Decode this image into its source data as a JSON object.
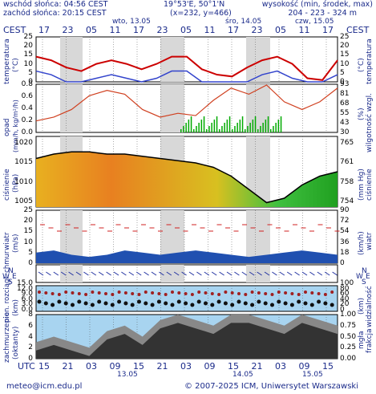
{
  "header": {
    "sunrise": "wschód słońca: 04:56 CEST",
    "sunset": "zachód słońca: 20:15 CEST",
    "coords": "19°53'E, 50°1'N",
    "grid": "(x=232, y=466)",
    "elev_label": "wysokość (min, środek, max)",
    "elev_value": "204 - 223 - 324 m"
  },
  "top_axis": {
    "tz_left": "CEST",
    "tz_right": "CEST",
    "hours": [
      "17",
      "23",
      "05",
      "11",
      "17",
      "23",
      "05",
      "11",
      "17",
      "23",
      "05",
      "11",
      "17"
    ],
    "days": [
      "wto, 13.05",
      "śro, 14.05",
      "czw, 15.05"
    ]
  },
  "bottom_axis": {
    "tz": "UTC",
    "hours": [
      "15",
      "21",
      "03",
      "09",
      "15",
      "21",
      "03",
      "09",
      "15",
      "21",
      "03",
      "09",
      "15"
    ],
    "dates": [
      "13.05",
      "14.05",
      "15.05"
    ]
  },
  "footer": {
    "left": "meteo@icm.edu.pl",
    "right": "© 2007-2025 ICM, Uniwersytet Warszawski"
  },
  "panels": {
    "temp": {
      "label_left": "temperatura",
      "unit_left": "(°C)",
      "label_right": "temperatura",
      "unit_right": "(°C)",
      "ticks": [
        "25",
        "20",
        "15",
        "10",
        "5",
        "0"
      ]
    },
    "precip": {
      "label_left": "opad",
      "unit_left": "(mm/h, kg/m²/h)",
      "label_right": "wilgotność wzgl.",
      "unit_right": "(%)",
      "ticks_left": [
        "0.8",
        "0.6",
        "0.4",
        "0.2",
        "0.0"
      ],
      "ticks_right": [
        "93",
        "81",
        "68",
        "55",
        "43",
        "30"
      ]
    },
    "pressure": {
      "label_left": "ciśnienie",
      "unit_left": "(hPa)",
      "label_right": "ciśnienie",
      "unit_right": "(mm Hg)",
      "ticks_left": [
        "1020",
        "1015",
        "1010",
        "1005"
      ],
      "ticks_right": [
        "765",
        "761",
        "758",
        "754"
      ]
    },
    "wind": {
      "label_left": "wiatr",
      "unit_left": "(m/s)",
      "label_right": "wiatr",
      "unit_right": "(km/h)",
      "ticks_left": [
        "25",
        "20",
        "15",
        "10",
        "5",
        "0"
      ],
      "ticks_right": [
        "90",
        "72",
        "54",
        "36",
        "18",
        "0"
      ]
    },
    "winddir": {
      "label_left_n": "N",
      "label_left_w": "W",
      "label_left_e": "E",
      "label_left_s": "S",
      "label_right_n": "N",
      "label_right_w": "W",
      "label_right_e": "E",
      "label_right_s": "S"
    },
    "visibility": {
      "label_left": "pion. rozciągł. chmur",
      "unit_left": "(km)",
      "label_right": "widzialność",
      "unit_right": "(km)",
      "ticks_left": [
        "15.0",
        "12.0",
        "9.0",
        "6.0",
        "3.0",
        "0.0"
      ],
      "ticks_right": [
        "100",
        "80",
        "60",
        "40",
        "20",
        "0"
      ]
    },
    "clouds": {
      "label_left": "zachmurzenie",
      "unit_left": "(oktanty)",
      "label_right": "frakcja",
      "unit_right": "mgła",
      "ticks_left": [
        "8",
        "6",
        "4",
        "2",
        "0"
      ],
      "ticks_right": [
        "1.00",
        "0.75",
        "0.50",
        "0.25",
        "0.00"
      ]
    }
  },
  "colors": {
    "bg_panel": "#a8d4f0",
    "night": "#d8d8d8",
    "temp": "#cc0000",
    "dew": "#3344cc",
    "hum": "#d04020",
    "precip": "#00aa00",
    "cloud_dark": "#333333",
    "cloud_mid": "#888888"
  },
  "chart_data": {
    "type": "line",
    "x_hours": [
      0,
      6,
      12,
      18,
      24,
      30,
      36,
      42,
      48,
      54,
      60,
      66,
      72,
      78
    ],
    "temperature": {
      "name": "temperatura",
      "values": [
        14,
        12,
        8,
        6,
        10,
        12,
        10,
        7,
        10,
        14,
        14,
        7,
        4,
        3,
        8,
        12,
        14,
        10,
        2,
        1,
        12
      ]
    },
    "humidity_pct": {
      "values": [
        45,
        50,
        60,
        78,
        85,
        80,
        60,
        50,
        55,
        52,
        72,
        88,
        80,
        92,
        70,
        60,
        70,
        88
      ]
    },
    "pressure_hpa": {
      "values": [
        1016,
        1017,
        1017.5,
        1017.5,
        1017,
        1017,
        1016.5,
        1016,
        1015.5,
        1015,
        1014,
        1012,
        1009,
        1006,
        1007,
        1010,
        1012,
        1013
      ]
    },
    "wind_ms": {
      "values": [
        5,
        6,
        4,
        3,
        4,
        6,
        5,
        4,
        5,
        6,
        5,
        4,
        3,
        4,
        5,
        6,
        5,
        4
      ]
    },
    "cloud_octants": {
      "values": [
        3,
        4,
        3,
        2,
        5,
        6,
        4,
        7,
        8,
        7,
        6,
        8,
        8,
        7,
        6,
        8,
        7,
        6
      ]
    }
  }
}
